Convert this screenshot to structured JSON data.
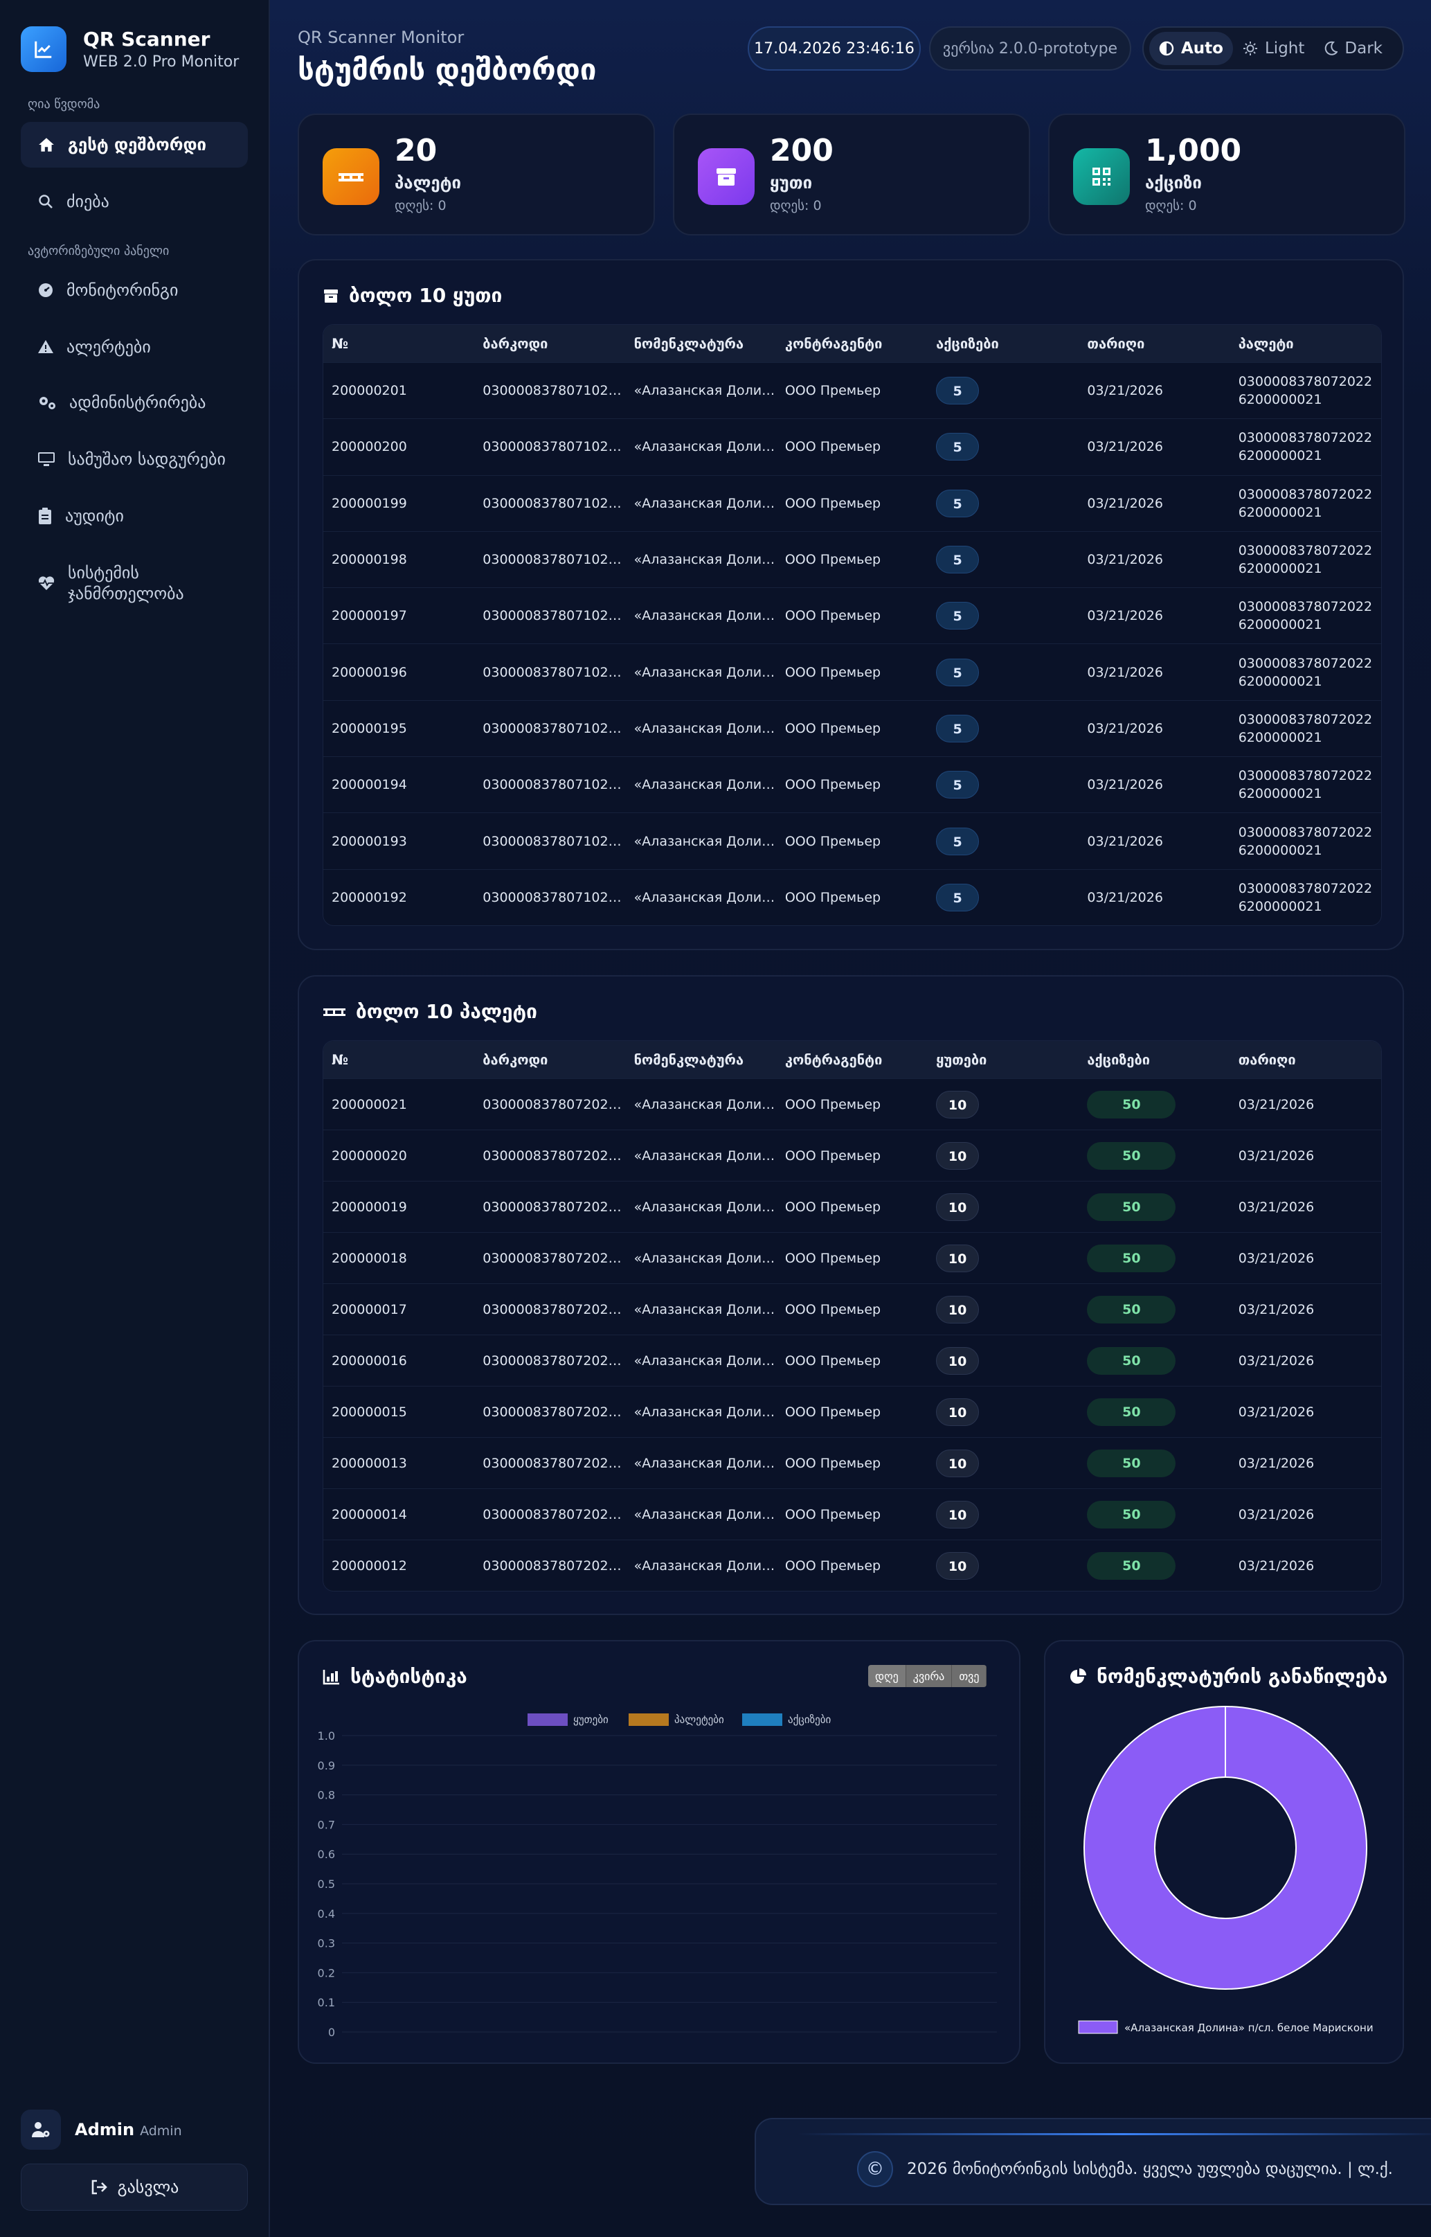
{
  "app": {
    "title": "QR Scanner",
    "subtitle": "WEB 2.0 Pro Monitor"
  },
  "sidebar": {
    "section_public": "ღია წვდომა",
    "section_auth": "ავტორიზებული პანელი",
    "items": [
      {
        "label": "გესტ დეშბორდი",
        "icon": "home-icon"
      },
      {
        "label": "ძიება",
        "icon": "search-icon"
      },
      {
        "label": "მონიტორინგი",
        "icon": "gauge-icon"
      },
      {
        "label": "ალერტები",
        "icon": "warning-icon"
      },
      {
        "label": "ადმინისტრირება",
        "icon": "gears-icon"
      },
      {
        "label": "სამუშაო სადგურები",
        "icon": "monitor-icon"
      },
      {
        "label": "აუდიტი",
        "icon": "clipboard-icon"
      },
      {
        "label": "სისტემის ჯანმრთელობა",
        "icon": "heartbeat-icon"
      }
    ],
    "user": {
      "name": "Admin",
      "role": "Admin"
    },
    "logout_label": "გასვლა"
  },
  "header": {
    "subtitle": "QR Scanner Monitor",
    "title": "სტუმრის დეშბორდი",
    "datetime": "17.04.2026 23:46:16",
    "version": "ვერსია 2.0.0-prototype",
    "theme": {
      "auto": "Auto",
      "light": "Light",
      "dark": "Dark",
      "active": "auto"
    }
  },
  "stats": [
    {
      "value": "20",
      "label": "პალეტი",
      "today": "დღეს: 0",
      "color": "#f59e0b"
    },
    {
      "value": "200",
      "label": "ყუთი",
      "today": "დღეს: 0",
      "color": "#8b5cf6"
    },
    {
      "value": "1,000",
      "label": "აქციზი",
      "today": "დღეს: 0",
      "color": "#14b8a6"
    }
  ],
  "boxes_table": {
    "title": "ბოლო 10 ყუთი",
    "columns": [
      "№",
      "ბარკოდი",
      "ნომენკლატურა",
      "კონტრაგენტი",
      "აქციზები",
      "თარიღი",
      "პალეტი"
    ],
    "rows": [
      {
        "no": "200000201",
        "barcode": "0300008378071022...",
        "nomenclature": "«Алазанская Долин...",
        "counterparty": "ООО Премьер",
        "excise": "5",
        "date": "03/21/2026",
        "pallet": "03000083780720226200000021"
      },
      {
        "no": "200000200",
        "barcode": "0300008378071022...",
        "nomenclature": "«Алазанская Долин...",
        "counterparty": "ООО Премьер",
        "excise": "5",
        "date": "03/21/2026",
        "pallet": "03000083780720226200000021"
      },
      {
        "no": "200000199",
        "barcode": "0300008378071022...",
        "nomenclature": "«Алазанская Долин...",
        "counterparty": "ООО Премьер",
        "excise": "5",
        "date": "03/21/2026",
        "pallet": "03000083780720226200000021"
      },
      {
        "no": "200000198",
        "barcode": "0300008378071022...",
        "nomenclature": "«Алазанская Долин...",
        "counterparty": "ООО Премьер",
        "excise": "5",
        "date": "03/21/2026",
        "pallet": "03000083780720226200000021"
      },
      {
        "no": "200000197",
        "barcode": "0300008378071022...",
        "nomenclature": "«Алазанская Долин...",
        "counterparty": "ООО Премьер",
        "excise": "5",
        "date": "03/21/2026",
        "pallet": "03000083780720226200000021"
      },
      {
        "no": "200000196",
        "barcode": "0300008378071022...",
        "nomenclature": "«Алазанская Долин...",
        "counterparty": "ООО Премьер",
        "excise": "5",
        "date": "03/21/2026",
        "pallet": "03000083780720226200000021"
      },
      {
        "no": "200000195",
        "barcode": "0300008378071022...",
        "nomenclature": "«Алазанская Долин...",
        "counterparty": "ООО Премьер",
        "excise": "5",
        "date": "03/21/2026",
        "pallet": "03000083780720226200000021"
      },
      {
        "no": "200000194",
        "barcode": "0300008378071022...",
        "nomenclature": "«Алазанская Долин...",
        "counterparty": "ООО Премьер",
        "excise": "5",
        "date": "03/21/2026",
        "pallet": "03000083780720226200000021"
      },
      {
        "no": "200000193",
        "barcode": "0300008378071022...",
        "nomenclature": "«Алазанская Долин...",
        "counterparty": "ООО Премьер",
        "excise": "5",
        "date": "03/21/2026",
        "pallet": "03000083780720226200000021"
      },
      {
        "no": "200000192",
        "barcode": "0300008378071022...",
        "nomenclature": "«Алазанская Долин...",
        "counterparty": "ООО Премьер",
        "excise": "5",
        "date": "03/21/2026",
        "pallet": "03000083780720226200000021"
      }
    ]
  },
  "pallets_table": {
    "title": "ბოლო 10 პალეტი",
    "columns": [
      "№",
      "ბარკოდი",
      "ნომენკლატურა",
      "კონტრაგენტი",
      "ყუთები",
      "აქციზები",
      "თარიღი"
    ],
    "rows": [
      {
        "no": "200000021",
        "barcode": "0300008378072022...",
        "nomenclature": "«Алазанская Долин...",
        "counterparty": "ООО Премьер",
        "boxes": "10",
        "excise": "50",
        "date": "03/21/2026"
      },
      {
        "no": "200000020",
        "barcode": "0300008378072022...",
        "nomenclature": "«Алазанская Долин...",
        "counterparty": "ООО Премьер",
        "boxes": "10",
        "excise": "50",
        "date": "03/21/2026"
      },
      {
        "no": "200000019",
        "barcode": "0300008378072022...",
        "nomenclature": "«Алазанская Долин...",
        "counterparty": "ООО Премьер",
        "boxes": "10",
        "excise": "50",
        "date": "03/21/2026"
      },
      {
        "no": "200000018",
        "barcode": "0300008378072022...",
        "nomenclature": "«Алазанская Долин...",
        "counterparty": "ООО Премьер",
        "boxes": "10",
        "excise": "50",
        "date": "03/21/2026"
      },
      {
        "no": "200000017",
        "barcode": "0300008378072022...",
        "nomenclature": "«Алазанская Долин...",
        "counterparty": "ООО Премьер",
        "boxes": "10",
        "excise": "50",
        "date": "03/21/2026"
      },
      {
        "no": "200000016",
        "barcode": "0300008378072022...",
        "nomenclature": "«Алазанская Долин...",
        "counterparty": "ООО Премьер",
        "boxes": "10",
        "excise": "50",
        "date": "03/21/2026"
      },
      {
        "no": "200000015",
        "barcode": "0300008378072022...",
        "nomenclature": "«Алазанская Долин...",
        "counterparty": "ООО Премьер",
        "boxes": "10",
        "excise": "50",
        "date": "03/21/2026"
      },
      {
        "no": "200000013",
        "barcode": "0300008378072022...",
        "nomenclature": "«Алазанская Долин...",
        "counterparty": "ООО Премьер",
        "boxes": "10",
        "excise": "50",
        "date": "03/21/2026"
      },
      {
        "no": "200000014",
        "barcode": "0300008378072022...",
        "nomenclature": "«Алазанская Долин...",
        "counterparty": "ООО Премьер",
        "boxes": "10",
        "excise": "50",
        "date": "03/21/2026"
      },
      {
        "no": "200000012",
        "barcode": "0300008378072022...",
        "nomenclature": "«Алазанская Долин...",
        "counterparty": "ООО Премьер",
        "boxes": "10",
        "excise": "50",
        "date": "03/21/2026"
      }
    ]
  },
  "statistics": {
    "title": "სტატისტიკა",
    "ranges": [
      "დღე",
      "კვირა",
      "თვე"
    ],
    "active_range": "დღე"
  },
  "distribution": {
    "title": "ნომენკლატურის განაწილება"
  },
  "chart_data": [
    {
      "type": "bar",
      "series": [
        {
          "name": "ყუთები",
          "color": "#6d4fc2",
          "values": []
        },
        {
          "name": "პალეტები",
          "color": "#b7791f",
          "values": []
        },
        {
          "name": "აქციზები",
          "color": "#1f7fbf",
          "values": []
        }
      ],
      "categories": [],
      "ylim": [
        0,
        1.0
      ],
      "yticks": [
        "1.0",
        "0.9",
        "0.8",
        "0.7",
        "0.6",
        "0.5",
        "0.4",
        "0.3",
        "0.2",
        "0.1",
        "0"
      ],
      "legend": "top",
      "grid": true
    },
    {
      "type": "pie",
      "donut": true,
      "slices": [
        {
          "label": "«Алазанская Долина» п/сл. белое Марискони",
          "value": 100,
          "color": "#8b5cf6"
        }
      ],
      "legend": "bottom"
    }
  ],
  "footer": {
    "text": "2026 მონიტორინგის სისტემა. ყველა უფლება დაცულია. | ლ.ქ.",
    "symbol": "©"
  }
}
